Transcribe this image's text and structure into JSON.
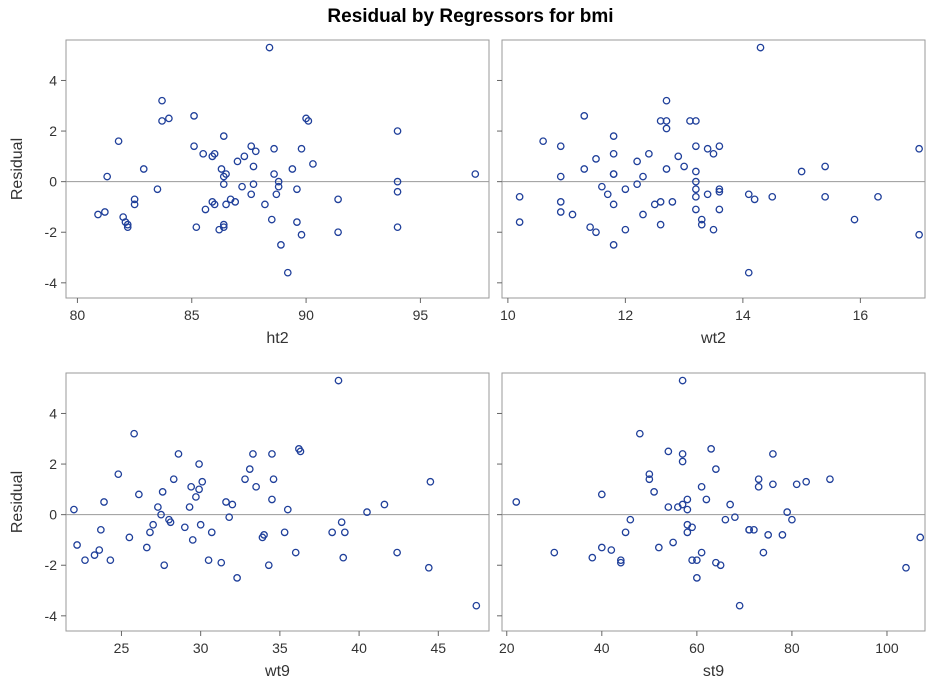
{
  "title": "Residual by Regressors for bmi",
  "marker_color": "#1f3f9a",
  "chart_data": [
    {
      "type": "scatter",
      "xlabel": "ht2",
      "ylabel": "Residual",
      "xlim": [
        79.5,
        98
      ],
      "ylim": [
        -4.6,
        5.6
      ],
      "xticks": [
        80,
        85,
        90,
        95
      ],
      "yticks": [
        -4,
        -2,
        0,
        2,
        4
      ],
      "x": [
        80.9,
        81.3,
        81.2,
        81.8,
        82.0,
        82.1,
        82.2,
        82.2,
        82.5,
        82.5,
        82.9,
        83.5,
        83.7,
        83.7,
        84.0,
        85.1,
        85.1,
        85.2,
        85.5,
        85.6,
        85.9,
        85.9,
        86.0,
        86.0,
        86.2,
        86.3,
        86.4,
        86.4,
        86.4,
        86.4,
        86.4,
        86.5,
        86.5,
        86.7,
        86.9,
        87.0,
        87.2,
        87.3,
        87.6,
        87.6,
        87.7,
        87.7,
        87.8,
        88.2,
        88.4,
        88.5,
        88.6,
        88.6,
        88.7,
        88.8,
        88.8,
        88.9,
        89.2,
        89.4,
        89.6,
        89.6,
        89.8,
        89.8,
        90.0,
        90.1,
        90.3,
        91.4,
        91.4,
        94.0,
        94.0,
        94.0,
        94.0,
        97.4
      ],
      "y": [
        -1.3,
        0.2,
        -1.2,
        1.6,
        -1.4,
        -1.6,
        -1.7,
        -1.8,
        -0.7,
        -0.9,
        0.5,
        -0.3,
        3.2,
        2.4,
        2.5,
        1.4,
        2.6,
        -1.8,
        1.1,
        -1.1,
        1.0,
        -0.8,
        1.1,
        -0.9,
        -1.9,
        0.5,
        1.8,
        0.2,
        -0.1,
        -1.7,
        -1.8,
        -0.9,
        0.3,
        -0.7,
        -0.8,
        0.8,
        -0.2,
        1.0,
        1.4,
        -0.5,
        0.6,
        -0.1,
        1.2,
        -0.9,
        5.3,
        -1.5,
        1.3,
        0.3,
        -0.5,
        0.0,
        -0.2,
        -2.5,
        -3.6,
        0.5,
        -1.6,
        -0.3,
        1.3,
        -2.1,
        2.5,
        2.4,
        0.7,
        -2.0,
        -0.7,
        -0.4,
        0.0,
        2.0,
        -1.8,
        0.3
      ],
      "ref_y": 0
    },
    {
      "type": "scatter",
      "xlabel": "wt2",
      "ylabel": "",
      "xlim": [
        9.9,
        17.1
      ],
      "ylim": [
        -4.6,
        5.6
      ],
      "xticks": [
        10,
        12,
        14,
        16
      ],
      "yticks": [
        -4,
        -2,
        0,
        2,
        4
      ],
      "x": [
        10.2,
        10.2,
        10.6,
        10.9,
        10.9,
        10.9,
        10.9,
        11.1,
        11.3,
        11.3,
        11.4,
        11.5,
        11.5,
        11.6,
        11.7,
        11.8,
        11.8,
        11.8,
        11.8,
        11.8,
        11.8,
        12.0,
        12.0,
        12.2,
        12.2,
        12.3,
        12.3,
        12.4,
        12.5,
        12.6,
        12.6,
        12.6,
        12.7,
        12.7,
        12.7,
        12.7,
        12.8,
        12.9,
        13.0,
        13.1,
        13.2,
        13.2,
        13.2,
        13.2,
        13.2,
        13.2,
        13.2,
        13.3,
        13.3,
        13.4,
        13.4,
        13.5,
        13.5,
        13.6,
        13.6,
        13.6,
        13.6,
        14.1,
        14.1,
        14.2,
        14.3,
        14.5,
        15.0,
        15.4,
        15.4,
        15.9,
        16.3,
        17.0,
        17.0
      ],
      "y": [
        -0.6,
        -1.6,
        1.6,
        1.4,
        0.2,
        -0.8,
        -1.2,
        -1.3,
        2.6,
        0.5,
        -1.8,
        -2.0,
        0.9,
        -0.2,
        -0.5,
        1.8,
        0.3,
        -0.9,
        1.1,
        0.3,
        -2.5,
        -1.9,
        -0.3,
        -0.1,
        0.8,
        0.2,
        -1.3,
        1.1,
        -0.9,
        -0.8,
        2.4,
        -1.7,
        3.2,
        2.1,
        2.4,
        0.5,
        -0.8,
        1.0,
        0.6,
        2.4,
        0.4,
        0.0,
        -0.3,
        -0.6,
        -1.1,
        2.4,
        1.4,
        -1.5,
        -1.7,
        1.3,
        -0.5,
        1.1,
        -1.9,
        -0.3,
        -0.4,
        -1.1,
        1.4,
        -0.5,
        -3.6,
        -0.7,
        5.3,
        -0.6,
        0.4,
        0.6,
        -0.6,
        -1.5,
        -0.6,
        1.3,
        -2.1
      ],
      "ref_y": 0
    },
    {
      "type": "scatter",
      "xlabel": "wt9",
      "ylabel": "Residual",
      "xlim": [
        21.5,
        48.2
      ],
      "ylim": [
        -4.6,
        5.6
      ],
      "xticks": [
        25,
        30,
        35,
        40,
        45
      ],
      "yticks": [
        -4,
        -2,
        0,
        2,
        4
      ],
      "x": [
        22.0,
        22.2,
        22.7,
        23.3,
        23.7,
        23.6,
        23.9,
        24.3,
        24.8,
        25.5,
        25.8,
        26.1,
        26.6,
        26.8,
        27.0,
        27.3,
        27.5,
        27.6,
        27.7,
        28.0,
        28.1,
        28.3,
        28.6,
        29.0,
        29.4,
        29.3,
        29.5,
        29.7,
        29.9,
        29.9,
        30.0,
        30.1,
        30.5,
        30.7,
        31.3,
        31.6,
        31.8,
        32.0,
        32.3,
        32.8,
        33.1,
        33.3,
        33.5,
        33.9,
        34.0,
        34.3,
        34.5,
        34.6,
        34.5,
        35.3,
        35.5,
        36.0,
        36.2,
        36.3,
        38.3,
        38.7,
        38.9,
        39.0,
        39.1,
        40.5,
        41.6,
        42.4,
        44.4,
        44.5,
        47.4
      ],
      "y": [
        0.2,
        -1.2,
        -1.8,
        -1.6,
        -0.6,
        -1.4,
        0.5,
        -1.8,
        1.6,
        -0.9,
        3.2,
        0.8,
        -1.3,
        -0.7,
        -0.4,
        0.3,
        0.0,
        0.9,
        -2.0,
        -0.2,
        -0.3,
        1.4,
        2.4,
        -0.5,
        1.1,
        0.3,
        -1.0,
        0.7,
        1.0,
        2.0,
        -0.4,
        1.3,
        -1.8,
        -0.7,
        -1.9,
        0.5,
        -0.1,
        0.4,
        -2.5,
        1.4,
        1.8,
        2.4,
        1.1,
        -0.9,
        -0.8,
        -2.0,
        2.4,
        1.4,
        0.6,
        -0.7,
        0.2,
        -1.5,
        2.6,
        2.5,
        -0.7,
        5.3,
        -0.3,
        -1.7,
        -0.7,
        0.1,
        0.4,
        -1.5,
        -2.1,
        1.3,
        -3.6
      ],
      "ref_y": 0
    },
    {
      "type": "scatter",
      "xlabel": "st9",
      "ylabel": "",
      "xlim": [
        19,
        108
      ],
      "ylim": [
        -4.6,
        5.6
      ],
      "xticks": [
        20,
        40,
        60,
        80,
        100
      ],
      "yticks": [
        -4,
        -2,
        0,
        2,
        4
      ],
      "x": [
        22,
        30,
        38,
        40,
        40,
        42,
        44,
        44,
        45,
        46,
        48,
        50,
        50,
        51,
        52,
        54,
        54,
        55,
        56,
        57,
        57,
        57,
        57,
        58,
        58,
        58,
        58,
        59,
        59,
        60,
        60,
        61,
        61,
        62,
        63,
        64,
        64,
        65,
        66,
        67,
        68,
        69,
        71,
        71,
        72,
        73,
        73,
        74,
        75,
        76,
        76,
        78,
        79,
        80,
        81,
        83,
        88,
        104,
        107
      ],
      "y": [
        0.5,
        -1.5,
        -1.7,
        0.8,
        -1.3,
        -1.4,
        -1.9,
        -1.8,
        -0.7,
        -0.2,
        3.2,
        1.4,
        1.6,
        0.9,
        -1.3,
        0.3,
        2.5,
        -1.1,
        0.3,
        5.3,
        2.4,
        2.1,
        0.4,
        0.6,
        -0.4,
        -0.7,
        0.2,
        -0.5,
        -1.8,
        -2.5,
        -1.8,
        1.1,
        -1.5,
        0.6,
        2.6,
        1.8,
        -1.9,
        -2.0,
        -0.2,
        0.4,
        -0.1,
        -3.6,
        -0.6,
        -0.6,
        -0.6,
        1.1,
        1.4,
        -1.5,
        -0.8,
        1.2,
        2.4,
        -0.8,
        0.1,
        -0.2,
        1.2,
        1.3,
        1.4,
        -2.1,
        -0.9
      ],
      "ref_y": 0
    }
  ]
}
